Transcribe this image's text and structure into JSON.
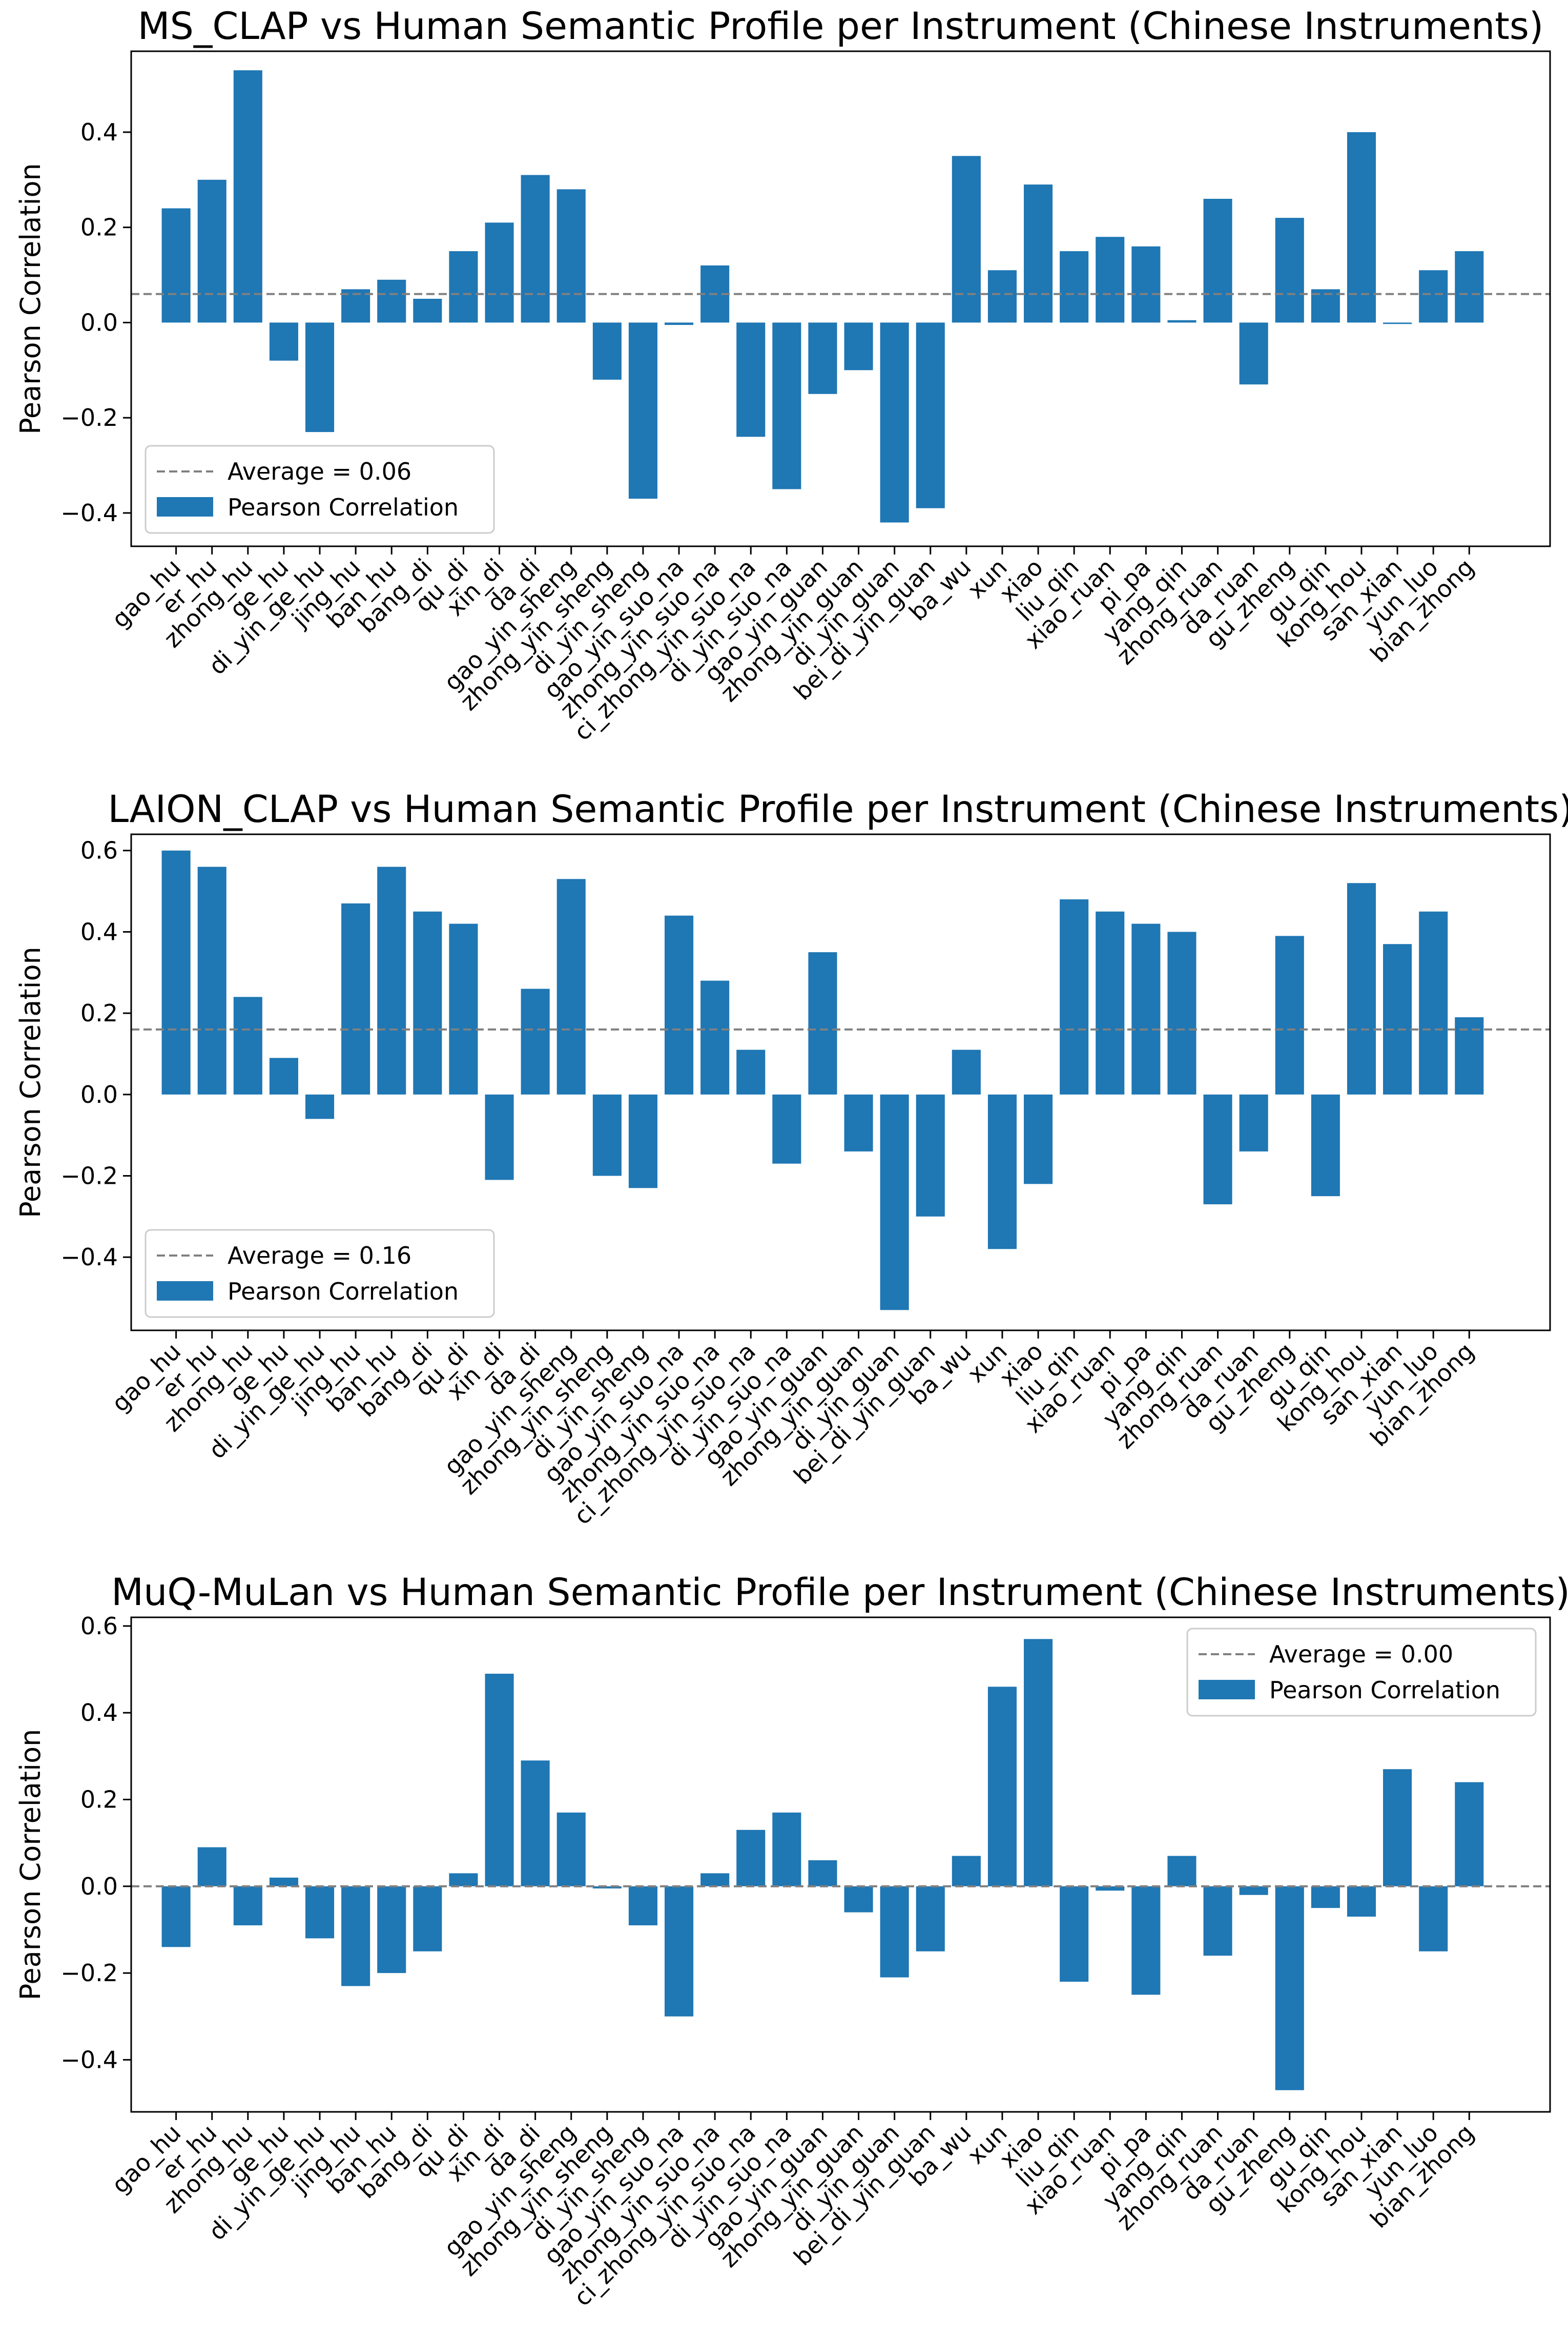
{
  "colors": {
    "bar": "#1f77b4",
    "average_line": "#808080",
    "axis": "#000000",
    "background": "#ffffff"
  },
  "chart_data": [
    {
      "type": "bar",
      "title": "MS_CLAP vs Human Semantic Profile per Instrument (Chinese Instruments)",
      "xlabel": "",
      "ylabel": "Pearson Correlation",
      "ylim": [
        -0.47,
        0.57
      ],
      "yticks": [
        -0.4,
        -0.2,
        0.0,
        0.2,
        0.4
      ],
      "ytick_labels": [
        "−0.4",
        "−0.2",
        "0.0",
        "0.2",
        "0.4"
      ],
      "categories": [
        "gao_hu",
        "er_hu",
        "zhong_hu",
        "ge_hu",
        "di_yin_ge_hu",
        "jing_hu",
        "ban_hu",
        "bang_di",
        "qu_di",
        "xin_di",
        "da_di",
        "gao_yin_sheng",
        "zhong_yin_sheng",
        "di_yin_sheng",
        "gao_yin_suo_na",
        "zhong_yin_suo_na",
        "ci_zhong_yin_suo_na",
        "di_yin_suo_na",
        "gao_yin_guan",
        "zhong_yin_guan",
        "di_yin_guan",
        "bei_di_yin_guan",
        "ba_wu",
        "xun",
        "xiao",
        "liu_qin",
        "xiao_ruan",
        "pi_pa",
        "yang_qin",
        "zhong_ruan",
        "da_ruan",
        "gu_zheng",
        "gu_qin",
        "kong_hou",
        "san_xian",
        "yun_luo",
        "bian_zhong"
      ],
      "values": [
        0.24,
        0.3,
        0.53,
        -0.08,
        -0.23,
        0.07,
        0.09,
        0.05,
        0.15,
        0.21,
        0.31,
        0.28,
        -0.12,
        -0.37,
        -0.005,
        0.12,
        -0.24,
        -0.35,
        -0.15,
        -0.1,
        -0.42,
        -0.39,
        0.35,
        0.11,
        0.29,
        0.15,
        0.18,
        0.16,
        0.005,
        0.26,
        -0.13,
        0.22,
        0.07,
        0.4,
        -0.003,
        0.11,
        0.15
      ],
      "average": 0.06,
      "legend": {
        "placement": "lower-left",
        "average_label": "Average = 0.06",
        "series_label": "Pearson Correlation"
      }
    },
    {
      "type": "bar",
      "title": "LAION_CLAP vs Human Semantic Profile per Instrument (Chinese Instruments)",
      "xlabel": "",
      "ylabel": "Pearson Correlation",
      "ylim": [
        -0.58,
        0.64
      ],
      "yticks": [
        -0.4,
        -0.2,
        0.0,
        0.2,
        0.4,
        0.6
      ],
      "ytick_labels": [
        "−0.4",
        "−0.2",
        "0.0",
        "0.2",
        "0.4",
        "0.6"
      ],
      "categories": [
        "gao_hu",
        "er_hu",
        "zhong_hu",
        "ge_hu",
        "di_yin_ge_hu",
        "jing_hu",
        "ban_hu",
        "bang_di",
        "qu_di",
        "xin_di",
        "da_di",
        "gao_yin_sheng",
        "zhong_yin_sheng",
        "di_yin_sheng",
        "gao_yin_suo_na",
        "zhong_yin_suo_na",
        "ci_zhong_yin_suo_na",
        "di_yin_suo_na",
        "gao_yin_guan",
        "zhong_yin_guan",
        "di_yin_guan",
        "bei_di_yin_guan",
        "ba_wu",
        "xun",
        "xiao",
        "liu_qin",
        "xiao_ruan",
        "pi_pa",
        "yang_qin",
        "zhong_ruan",
        "da_ruan",
        "gu_zheng",
        "gu_qin",
        "kong_hou",
        "san_xian",
        "yun_luo",
        "bian_zhong"
      ],
      "values": [
        0.6,
        0.56,
        0.24,
        0.09,
        -0.06,
        0.47,
        0.56,
        0.45,
        0.42,
        -0.21,
        0.26,
        0.53,
        -0.2,
        -0.23,
        0.44,
        0.28,
        0.11,
        -0.17,
        0.35,
        -0.14,
        -0.53,
        -0.3,
        0.11,
        -0.38,
        -0.22,
        0.48,
        0.45,
        0.42,
        0.4,
        -0.27,
        -0.14,
        0.39,
        -0.25,
        0.52,
        0.37,
        0.45,
        0.19
      ],
      "average": 0.16,
      "legend": {
        "placement": "lower-left",
        "average_label": "Average = 0.16",
        "series_label": "Pearson Correlation"
      }
    },
    {
      "type": "bar",
      "title": "MuQ-MuLan vs Human Semantic Profile per Instrument (Chinese Instruments)",
      "xlabel": "",
      "ylabel": "Pearson Correlation",
      "ylim": [
        -0.52,
        0.62
      ],
      "yticks": [
        -0.4,
        -0.2,
        0.0,
        0.2,
        0.4,
        0.6
      ],
      "ytick_labels": [
        "−0.4",
        "−0.2",
        "0.0",
        "0.2",
        "0.4",
        "0.6"
      ],
      "categories": [
        "gao_hu",
        "er_hu",
        "zhong_hu",
        "ge_hu",
        "di_yin_ge_hu",
        "jing_hu",
        "ban_hu",
        "bang_di",
        "qu_di",
        "xin_di",
        "da_di",
        "gao_yin_sheng",
        "zhong_yin_sheng",
        "di_yin_sheng",
        "gao_yin_suo_na",
        "zhong_yin_suo_na",
        "ci_zhong_yin_suo_na",
        "di_yin_suo_na",
        "gao_yin_guan",
        "zhong_yin_guan",
        "di_yin_guan",
        "bei_di_yin_guan",
        "ba_wu",
        "xun",
        "xiao",
        "liu_qin",
        "xiao_ruan",
        "pi_pa",
        "yang_qin",
        "zhong_ruan",
        "da_ruan",
        "gu_zheng",
        "gu_qin",
        "kong_hou",
        "san_xian",
        "yun_luo",
        "bian_zhong"
      ],
      "values": [
        -0.14,
        0.09,
        -0.09,
        0.02,
        -0.12,
        -0.23,
        -0.2,
        -0.15,
        0.03,
        0.49,
        0.29,
        0.17,
        -0.005,
        -0.09,
        -0.3,
        0.03,
        0.13,
        0.17,
        0.06,
        -0.06,
        -0.21,
        -0.15,
        0.07,
        0.46,
        0.57,
        -0.22,
        -0.01,
        -0.25,
        0.07,
        -0.16,
        -0.02,
        -0.47,
        -0.05,
        -0.07,
        0.27,
        -0.15,
        0.24
      ],
      "average": 0.0,
      "legend": {
        "placement": "upper-right",
        "average_label": "Average = 0.00",
        "series_label": "Pearson Correlation"
      }
    }
  ]
}
